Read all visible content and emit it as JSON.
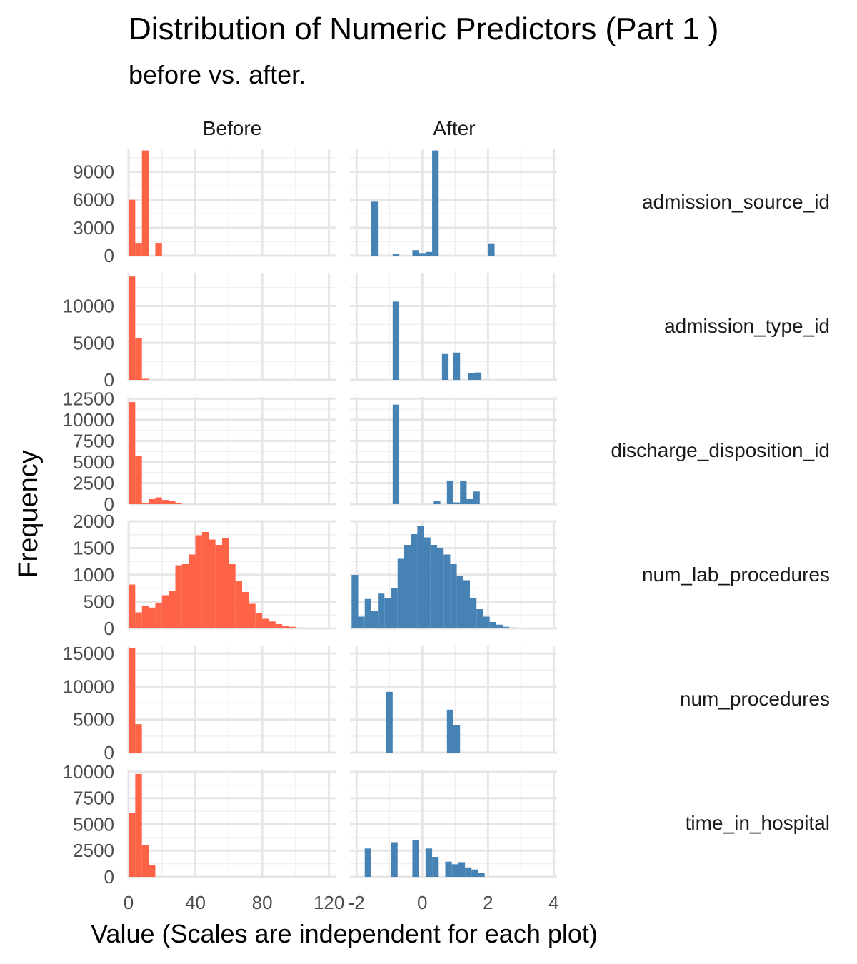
{
  "chart_data": {
    "type": "bar",
    "title": "Distribution of Numeric Predictors (Part 1 )",
    "subtitle": "before vs. after.",
    "xlabel": "Value (Scales are independent for each plot)",
    "ylabel": "Frequency",
    "columns": [
      "Before",
      "After"
    ],
    "colors": {
      "Before": "#FF6347",
      "After": "#4682B4"
    },
    "grid": true,
    "x_axes": {
      "Before": {
        "xlim": [
          0,
          124
        ],
        "ticks": [
          0,
          40,
          80,
          120
        ],
        "tick_labels": [
          "0",
          "40",
          "80",
          "120"
        ]
      },
      "After": {
        "xlim": [
          -2.2,
          4.1
        ],
        "ticks": [
          -2,
          0,
          2,
          4
        ],
        "tick_labels": [
          "-2",
          "0",
          "2",
          "4"
        ]
      }
    },
    "panels": [
      {
        "name": "admission_source_id",
        "ylim": [
          0,
          11500
        ],
        "yticks": [
          0,
          3000,
          6000,
          9000
        ],
        "ytick_labels": [
          "0",
          "3000",
          "6000",
          "9000"
        ],
        "before": [
          {
            "x0": 0,
            "x1": 4,
            "y": 6000
          },
          {
            "x0": 4,
            "x1": 8,
            "y": 1300
          },
          {
            "x0": 8,
            "x1": 12,
            "y": 11300
          },
          {
            "x0": 16,
            "x1": 20,
            "y": 1300
          }
        ],
        "after": [
          {
            "x0": -1.55,
            "x1": -1.35,
            "y": 5800
          },
          {
            "x0": -0.9,
            "x1": -0.7,
            "y": 150
          },
          {
            "x0": -0.3,
            "x1": -0.1,
            "y": 600
          },
          {
            "x0": -0.1,
            "x1": 0.1,
            "y": 200
          },
          {
            "x0": 0.1,
            "x1": 0.3,
            "y": 400
          },
          {
            "x0": 0.3,
            "x1": 0.5,
            "y": 11300
          },
          {
            "x0": 2.0,
            "x1": 2.2,
            "y": 1250
          }
        ]
      },
      {
        "name": "admission_type_id",
        "ylim": [
          0,
          14500
        ],
        "yticks": [
          0,
          5000,
          10000
        ],
        "ytick_labels": [
          "0",
          "5000",
          "10000"
        ],
        "before": [
          {
            "x0": 0,
            "x1": 4,
            "y": 14000
          },
          {
            "x0": 4,
            "x1": 8,
            "y": 5700
          },
          {
            "x0": 8,
            "x1": 12,
            "y": 150
          }
        ],
        "after": [
          {
            "x0": -0.9,
            "x1": -0.7,
            "y": 10600
          },
          {
            "x0": 0.6,
            "x1": 0.8,
            "y": 3500
          },
          {
            "x0": 0.95,
            "x1": 1.15,
            "y": 3700
          },
          {
            "x0": 1.4,
            "x1": 1.6,
            "y": 900
          },
          {
            "x0": 1.6,
            "x1": 1.8,
            "y": 1000
          }
        ]
      },
      {
        "name": "discharge_disposition_id",
        "ylim": [
          0,
          12700
        ],
        "yticks": [
          0,
          2500,
          5000,
          7500,
          10000,
          12500
        ],
        "ytick_labels": [
          "0",
          "2500",
          "5000",
          "7500",
          "10000",
          "12500"
        ],
        "before": [
          {
            "x0": 0,
            "x1": 4,
            "y": 12100
          },
          {
            "x0": 4,
            "x1": 8,
            "y": 5700
          },
          {
            "x0": 8,
            "x1": 12,
            "y": 100
          },
          {
            "x0": 12,
            "x1": 16,
            "y": 600
          },
          {
            "x0": 16,
            "x1": 20,
            "y": 800
          },
          {
            "x0": 20,
            "x1": 24,
            "y": 500
          },
          {
            "x0": 24,
            "x1": 28,
            "y": 350
          },
          {
            "x0": 28,
            "x1": 32,
            "y": 100
          }
        ],
        "after": [
          {
            "x0": -0.9,
            "x1": -0.7,
            "y": 11800
          },
          {
            "x0": 0.35,
            "x1": 0.55,
            "y": 400
          },
          {
            "x0": 0.75,
            "x1": 0.95,
            "y": 2800
          },
          {
            "x0": 0.95,
            "x1": 1.15,
            "y": 200
          },
          {
            "x0": 1.15,
            "x1": 1.35,
            "y": 2800
          },
          {
            "x0": 1.35,
            "x1": 1.55,
            "y": 600
          },
          {
            "x0": 1.55,
            "x1": 1.75,
            "y": 1500
          }
        ]
      },
      {
        "name": "num_lab_procedures",
        "ylim": [
          0,
          2000
        ],
        "yticks": [
          0,
          500,
          1000,
          1500,
          2000
        ],
        "ytick_labels": [
          "0",
          "500",
          "1000",
          "1500",
          "2000"
        ],
        "before": [
          {
            "x0": 0,
            "x1": 4,
            "y": 820
          },
          {
            "x0": 4,
            "x1": 8,
            "y": 300
          },
          {
            "x0": 8,
            "x1": 12,
            "y": 420
          },
          {
            "x0": 12,
            "x1": 16,
            "y": 390
          },
          {
            "x0": 16,
            "x1": 20,
            "y": 480
          },
          {
            "x0": 20,
            "x1": 24,
            "y": 620
          },
          {
            "x0": 24,
            "x1": 28,
            "y": 700
          },
          {
            "x0": 28,
            "x1": 32,
            "y": 1180
          },
          {
            "x0": 32,
            "x1": 36,
            "y": 1200
          },
          {
            "x0": 36,
            "x1": 40,
            "y": 1380
          },
          {
            "x0": 40,
            "x1": 44,
            "y": 1740
          },
          {
            "x0": 44,
            "x1": 48,
            "y": 1800
          },
          {
            "x0": 48,
            "x1": 52,
            "y": 1660
          },
          {
            "x0": 52,
            "x1": 56,
            "y": 1560
          },
          {
            "x0": 56,
            "x1": 60,
            "y": 1680
          },
          {
            "x0": 60,
            "x1": 64,
            "y": 1200
          },
          {
            "x0": 64,
            "x1": 68,
            "y": 880
          },
          {
            "x0": 68,
            "x1": 72,
            "y": 680
          },
          {
            "x0": 72,
            "x1": 76,
            "y": 460
          },
          {
            "x0": 76,
            "x1": 80,
            "y": 280
          },
          {
            "x0": 80,
            "x1": 84,
            "y": 180
          },
          {
            "x0": 84,
            "x1": 88,
            "y": 130
          },
          {
            "x0": 88,
            "x1": 92,
            "y": 80
          },
          {
            "x0": 92,
            "x1": 96,
            "y": 50
          },
          {
            "x0": 96,
            "x1": 100,
            "y": 30
          },
          {
            "x0": 100,
            "x1": 104,
            "y": 15
          }
        ],
        "after": [
          {
            "x0": -2.15,
            "x1": -1.95,
            "y": 1000
          },
          {
            "x0": -1.95,
            "x1": -1.75,
            "y": 220
          },
          {
            "x0": -1.75,
            "x1": -1.55,
            "y": 550
          },
          {
            "x0": -1.55,
            "x1": -1.35,
            "y": 320
          },
          {
            "x0": -1.35,
            "x1": -1.15,
            "y": 650
          },
          {
            "x0": -1.15,
            "x1": -0.95,
            "y": 560
          },
          {
            "x0": -0.95,
            "x1": -0.75,
            "y": 760
          },
          {
            "x0": -0.75,
            "x1": -0.55,
            "y": 1300
          },
          {
            "x0": -0.55,
            "x1": -0.35,
            "y": 1560
          },
          {
            "x0": -0.35,
            "x1": -0.15,
            "y": 1760
          },
          {
            "x0": -0.15,
            "x1": 0.05,
            "y": 1920
          },
          {
            "x0": 0.05,
            "x1": 0.25,
            "y": 1700
          },
          {
            "x0": 0.25,
            "x1": 0.45,
            "y": 1560
          },
          {
            "x0": 0.45,
            "x1": 0.65,
            "y": 1500
          },
          {
            "x0": 0.65,
            "x1": 0.85,
            "y": 1380
          },
          {
            "x0": 0.85,
            "x1": 1.05,
            "y": 1200
          },
          {
            "x0": 1.05,
            "x1": 1.25,
            "y": 980
          },
          {
            "x0": 1.25,
            "x1": 1.45,
            "y": 900
          },
          {
            "x0": 1.45,
            "x1": 1.65,
            "y": 560
          },
          {
            "x0": 1.65,
            "x1": 1.85,
            "y": 360
          },
          {
            "x0": 1.85,
            "x1": 2.05,
            "y": 220
          },
          {
            "x0": 2.05,
            "x1": 2.25,
            "y": 120
          },
          {
            "x0": 2.25,
            "x1": 2.45,
            "y": 70
          },
          {
            "x0": 2.45,
            "x1": 2.65,
            "y": 30
          },
          {
            "x0": 2.65,
            "x1": 2.85,
            "y": 15
          }
        ]
      },
      {
        "name": "num_procedures",
        "ylim": [
          0,
          16200
        ],
        "yticks": [
          0,
          5000,
          10000,
          15000
        ],
        "ytick_labels": [
          "0",
          "5000",
          "10000",
          "15000"
        ],
        "before": [
          {
            "x0": 0,
            "x1": 4,
            "y": 15800
          },
          {
            "x0": 4,
            "x1": 8,
            "y": 4300
          }
        ],
        "after": [
          {
            "x0": -1.1,
            "x1": -0.9,
            "y": 9200
          },
          {
            "x0": 0.75,
            "x1": 0.95,
            "y": 6500
          },
          {
            "x0": 0.95,
            "x1": 1.15,
            "y": 4200
          }
        ]
      },
      {
        "name": "time_in_hospital",
        "ylim": [
          0,
          10200
        ],
        "yticks": [
          0,
          2500,
          5000,
          7500,
          10000
        ],
        "ytick_labels": [
          "0",
          "2500",
          "5000",
          "7500",
          "10000"
        ],
        "before": [
          {
            "x0": 0,
            "x1": 4,
            "y": 6100
          },
          {
            "x0": 4,
            "x1": 8,
            "y": 9800
          },
          {
            "x0": 8,
            "x1": 12,
            "y": 3000
          },
          {
            "x0": 12,
            "x1": 16,
            "y": 1100
          }
        ],
        "after": [
          {
            "x0": -1.75,
            "x1": -1.55,
            "y": 2700
          },
          {
            "x0": -0.95,
            "x1": -0.75,
            "y": 3300
          },
          {
            "x0": -0.3,
            "x1": -0.1,
            "y": 3500
          },
          {
            "x0": 0.1,
            "x1": 0.3,
            "y": 2700
          },
          {
            "x0": 0.3,
            "x1": 0.5,
            "y": 1900
          },
          {
            "x0": 0.7,
            "x1": 0.9,
            "y": 1450
          },
          {
            "x0": 0.9,
            "x1": 1.1,
            "y": 1200
          },
          {
            "x0": 1.1,
            "x1": 1.3,
            "y": 1400
          },
          {
            "x0": 1.3,
            "x1": 1.5,
            "y": 900
          },
          {
            "x0": 1.5,
            "x1": 1.7,
            "y": 700
          },
          {
            "x0": 1.7,
            "x1": 1.9,
            "y": 400
          }
        ]
      }
    ]
  }
}
